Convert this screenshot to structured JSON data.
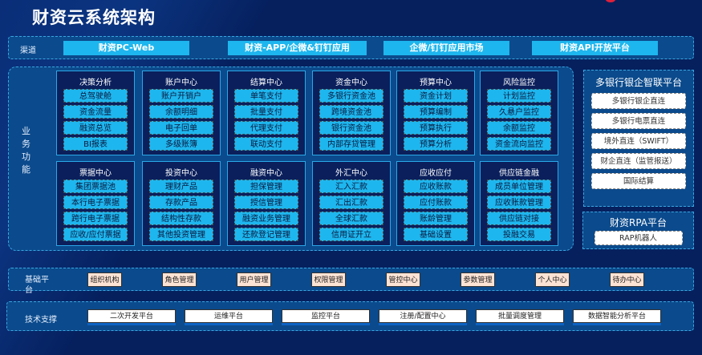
{
  "title": "财资云系统架构",
  "colors": {
    "background": "#06205e",
    "band": "#0b4a8c",
    "item": "#1eb6ee",
    "platform_button": "#fde3d4",
    "logo": "#e0203a"
  },
  "channels": {
    "label": "渠道",
    "items": [
      "财资PC-Web",
      "财资-APP/企微&钉钉应用",
      "企微/钉钉应用市场",
      "财资API开放平台"
    ]
  },
  "business": {
    "label": "业务功能",
    "modules": [
      {
        "name": "决策分析",
        "items": [
          "总驾驶舱",
          "资金流量",
          "融资总览",
          "BI报表"
        ]
      },
      {
        "name": "账户中心",
        "items": [
          "账户开销户",
          "余额明细",
          "电子回单",
          "多级账簿"
        ]
      },
      {
        "name": "结算中心",
        "items": [
          "单笔支付",
          "批量支付",
          "代理支付",
          "联动支付"
        ]
      },
      {
        "name": "资金中心",
        "items": [
          "多银行资金池",
          "跨境资金池",
          "银行资金池",
          "内部存贷管理"
        ]
      },
      {
        "name": "预算中心",
        "items": [
          "资金计划",
          "预算编制",
          "预算执行",
          "预算分析"
        ]
      },
      {
        "name": "风险监控",
        "items": [
          "计划监控",
          "久悬户监控",
          "余额监控",
          "资金流向监控"
        ]
      },
      {
        "name": "票据中心",
        "items": [
          "集团票据池",
          "本行电子票据",
          "跨行电子票据",
          "应收/应付票据"
        ]
      },
      {
        "name": "投资中心",
        "items": [
          "理财产品",
          "存款产品",
          "结构性存款",
          "其他投资管理"
        ]
      },
      {
        "name": "融资中心",
        "items": [
          "担保管理",
          "授信管理",
          "融资业务管理",
          "还款登记管理"
        ]
      },
      {
        "name": "外汇中心",
        "items": [
          "汇入汇款",
          "汇出汇款",
          "全球汇款",
          "信用证开立"
        ]
      },
      {
        "name": "应收应付",
        "items": [
          "应收账款",
          "应付账款",
          "账龄管理",
          "基础设置"
        ]
      },
      {
        "name": "供应链金融",
        "items": [
          "成员单位管理",
          "应收账款管理",
          "供应链对接",
          "投融交易"
        ]
      }
    ]
  },
  "bank_platform": {
    "title": "多银行银企智联平台",
    "items": [
      "多银行银企直连",
      "多银行电票直连",
      "境外直连（SWIFT）",
      "财企直连（监管报送）",
      "国际结算"
    ]
  },
  "rpa_platform": {
    "title": "财资RPA平台",
    "items": [
      "RAP机器人"
    ]
  },
  "base_platform": {
    "label": "基础平台",
    "items": [
      "组织机构",
      "角色管理",
      "用户管理",
      "权限管理",
      "管控中心",
      "参数管理",
      "个人中心",
      "待办中心"
    ]
  },
  "tech_support": {
    "label": "技术支撑",
    "items": [
      "二次开发平台",
      "运维平台",
      "监控平台",
      "注册/配置中心",
      "批量调度管理",
      "数据智能分析平台"
    ]
  }
}
